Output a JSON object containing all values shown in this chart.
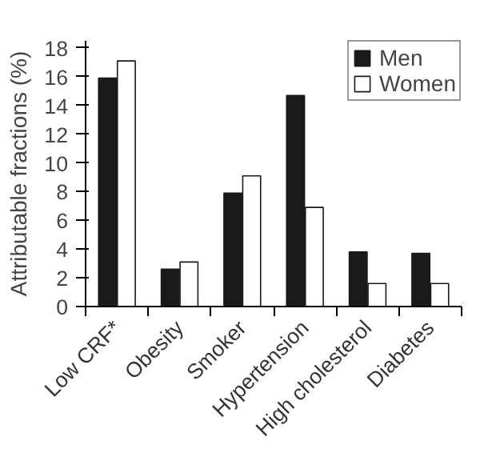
{
  "chart_data": {
    "type": "bar",
    "ylabel": "Attributable fractions (%)",
    "categories": [
      "Low CRF*",
      "Obesity",
      "Smoker",
      "Hypertension",
      "High cholesterol",
      "Diabetes"
    ],
    "series": [
      {
        "name": "Men",
        "color": "#1a1a1a",
        "values": [
          15.9,
          2.6,
          7.9,
          14.7,
          3.8,
          3.7
        ]
      },
      {
        "name": "Women",
        "color": "#ffffff",
        "values": [
          17.1,
          3.1,
          9.1,
          6.9,
          1.6,
          1.6
        ]
      }
    ],
    "ylim": [
      0,
      18.5
    ],
    "yticks": [
      0,
      2,
      4,
      6,
      8,
      10,
      12,
      14,
      16,
      18
    ],
    "grid": false,
    "legend": "top right"
  }
}
